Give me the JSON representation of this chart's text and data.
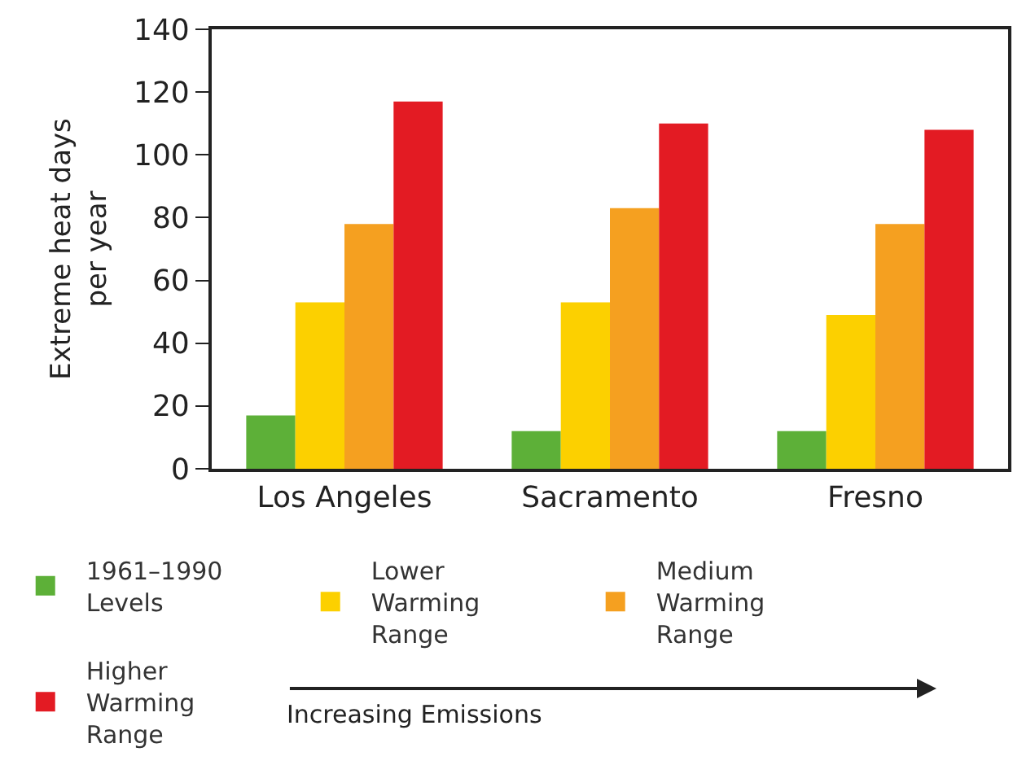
{
  "chart_data": {
    "type": "bar",
    "ylabel": "Extreme heat days per year",
    "categories": [
      "Los Angeles",
      "Sacramento",
      "Fresno"
    ],
    "series": [
      {
        "name": "1961–1990 Levels",
        "color": "#5db038",
        "values": [
          17,
          12,
          12
        ]
      },
      {
        "name": "Lower Warming Range",
        "color": "#fcd000",
        "values": [
          53,
          53,
          49
        ]
      },
      {
        "name": "Medium Warming Range",
        "color": "#f5a020",
        "values": [
          78,
          83,
          78
        ]
      },
      {
        "name": "Higher Warming Range",
        "color": "#e31b23",
        "values": [
          117,
          110,
          108
        ]
      }
    ],
    "ylim": [
      0,
      140
    ],
    "yticks": [
      0,
      20,
      40,
      60,
      80,
      100,
      120,
      140
    ],
    "grid": false,
    "legend": "bottom",
    "annotations": [
      "Increasing Emissions"
    ]
  }
}
